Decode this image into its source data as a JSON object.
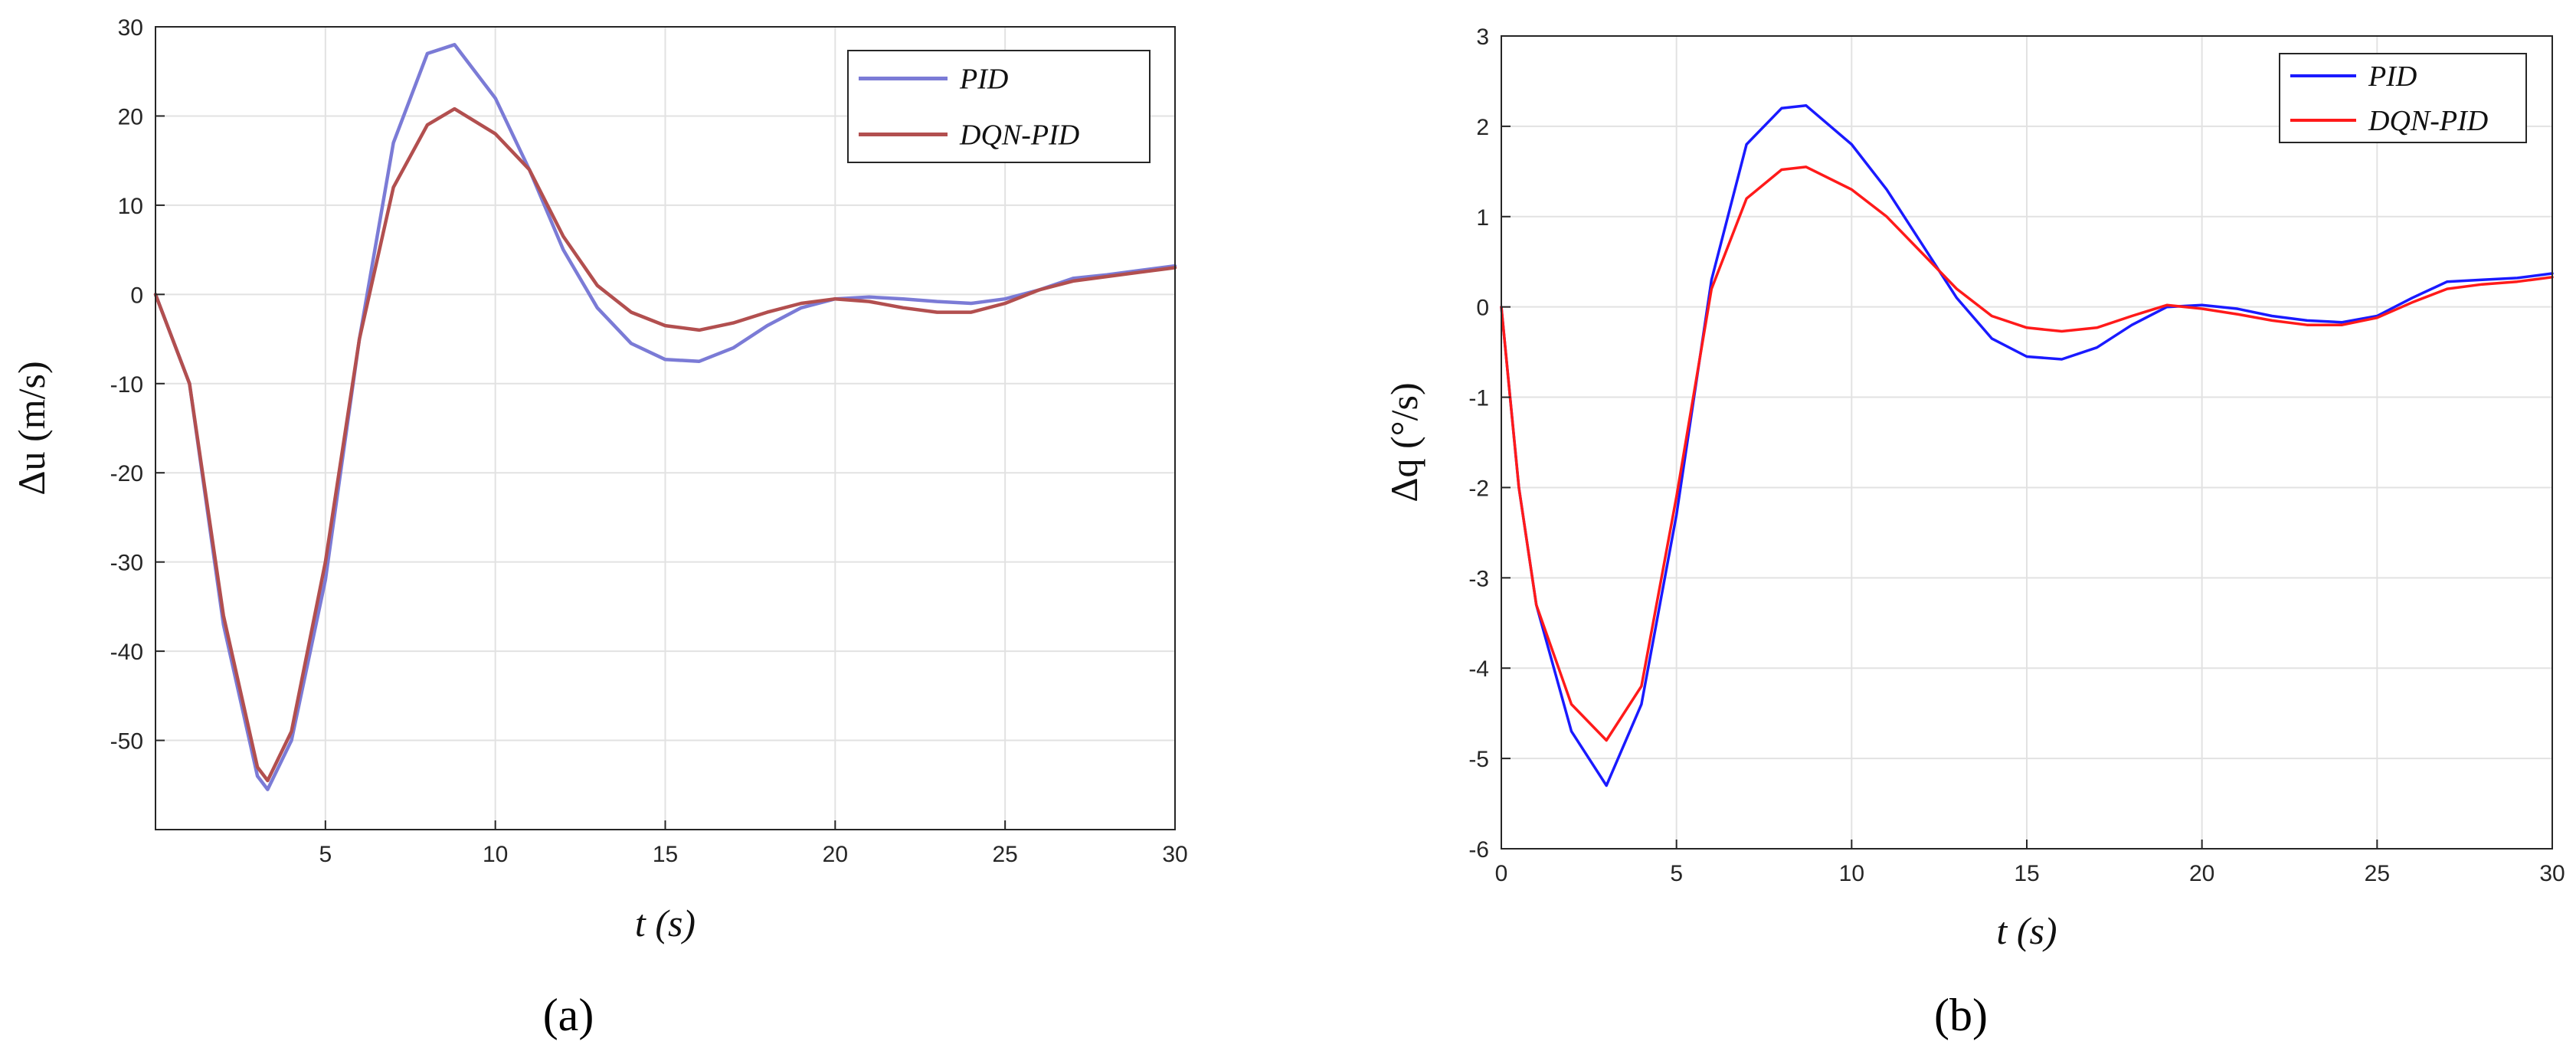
{
  "chart_data": [
    {
      "type": "line",
      "panel_label": "(a)",
      "xlabel": "t (s)",
      "ylabel": "Δu (m/s)",
      "xlim": [
        0,
        30
      ],
      "ylim": [
        -60,
        30
      ],
      "xticks": [
        5,
        10,
        15,
        20,
        25,
        30
      ],
      "yticks": [
        -50,
        -40,
        -30,
        -20,
        -10,
        0,
        10,
        20,
        30
      ],
      "grid": true,
      "legend_position": "top-right",
      "series": [
        {
          "name": "PID",
          "color": "#7b7bd6",
          "x": [
            0,
            1,
            2,
            3,
            3.3,
            4,
            5,
            6,
            7,
            8,
            8.8,
            10,
            11,
            12,
            13,
            14,
            15,
            16,
            17,
            18,
            19,
            20,
            21,
            22,
            23,
            24,
            25,
            26,
            27,
            28,
            29,
            30
          ],
          "y": [
            0,
            -10,
            -37,
            -54,
            -55.5,
            -50,
            -32,
            -5,
            17,
            27,
            28,
            22,
            14,
            5,
            -1.5,
            -5.5,
            -7.3,
            -7.5,
            -6,
            -3.5,
            -1.5,
            -0.5,
            -0.3,
            -0.5,
            -0.8,
            -1,
            -0.5,
            0.5,
            1.8,
            2.2,
            2.7,
            3.2
          ]
        },
        {
          "name": "DQN-PID",
          "color": "#b24f4f",
          "x": [
            0,
            1,
            2,
            3,
            3.3,
            4,
            5,
            6,
            7,
            8,
            8.8,
            10,
            11,
            12,
            13,
            14,
            15,
            16,
            17,
            18,
            19,
            20,
            21,
            22,
            23,
            24,
            25,
            26,
            27,
            28,
            29,
            30
          ],
          "y": [
            0,
            -10,
            -36,
            -53,
            -54.5,
            -49,
            -30,
            -5,
            12,
            19,
            20.8,
            18,
            14,
            6.5,
            1,
            -2,
            -3.5,
            -4,
            -3.2,
            -2,
            -1,
            -0.5,
            -0.8,
            -1.5,
            -2,
            -2,
            -1,
            0.5,
            1.5,
            2,
            2.5,
            3
          ]
        }
      ]
    },
    {
      "type": "line",
      "panel_label": "(b)",
      "xlabel": "t (s)",
      "ylabel": "Δq (°/s)",
      "xlim": [
        0,
        30
      ],
      "ylim": [
        -6,
        3
      ],
      "xticks": [
        0,
        5,
        10,
        15,
        20,
        25,
        30
      ],
      "yticks": [
        -6,
        -5,
        -4,
        -3,
        -2,
        -1,
        0,
        1,
        2,
        3
      ],
      "grid": true,
      "legend_position": "top-right",
      "series": [
        {
          "name": "PID",
          "color": "#1a1aff",
          "x": [
            0,
            0.5,
            1,
            2,
            3,
            4,
            5,
            6,
            7,
            8,
            8.7,
            10,
            11,
            12,
            13,
            14,
            15,
            16,
            17,
            18,
            19,
            20,
            21,
            22,
            23,
            24,
            25,
            26,
            27,
            28,
            29,
            30
          ],
          "y": [
            0,
            -2,
            -3.3,
            -4.7,
            -5.3,
            -4.4,
            -2.3,
            0.3,
            1.8,
            2.2,
            2.23,
            1.8,
            1.3,
            0.7,
            0.1,
            -0.35,
            -0.55,
            -0.58,
            -0.45,
            -0.2,
            0,
            0.02,
            -0.02,
            -0.1,
            -0.15,
            -0.17,
            -0.1,
            0.1,
            0.28,
            0.3,
            0.32,
            0.37
          ]
        },
        {
          "name": "DQN-PID",
          "color": "#ff1a1a",
          "x": [
            0,
            0.5,
            1,
            2,
            3,
            4,
            5,
            6,
            7,
            8,
            8.7,
            10,
            11,
            12,
            13,
            14,
            15,
            16,
            17,
            18,
            19,
            20,
            21,
            22,
            23,
            24,
            25,
            26,
            27,
            28,
            29,
            30
          ],
          "y": [
            0,
            -2,
            -3.3,
            -4.4,
            -4.8,
            -4.2,
            -2.1,
            0.2,
            1.2,
            1.52,
            1.55,
            1.3,
            1,
            0.6,
            0.2,
            -0.1,
            -0.23,
            -0.27,
            -0.23,
            -0.1,
            0.02,
            -0.02,
            -0.08,
            -0.15,
            -0.2,
            -0.2,
            -0.12,
            0.05,
            0.2,
            0.25,
            0.28,
            0.33
          ]
        }
      ]
    }
  ]
}
